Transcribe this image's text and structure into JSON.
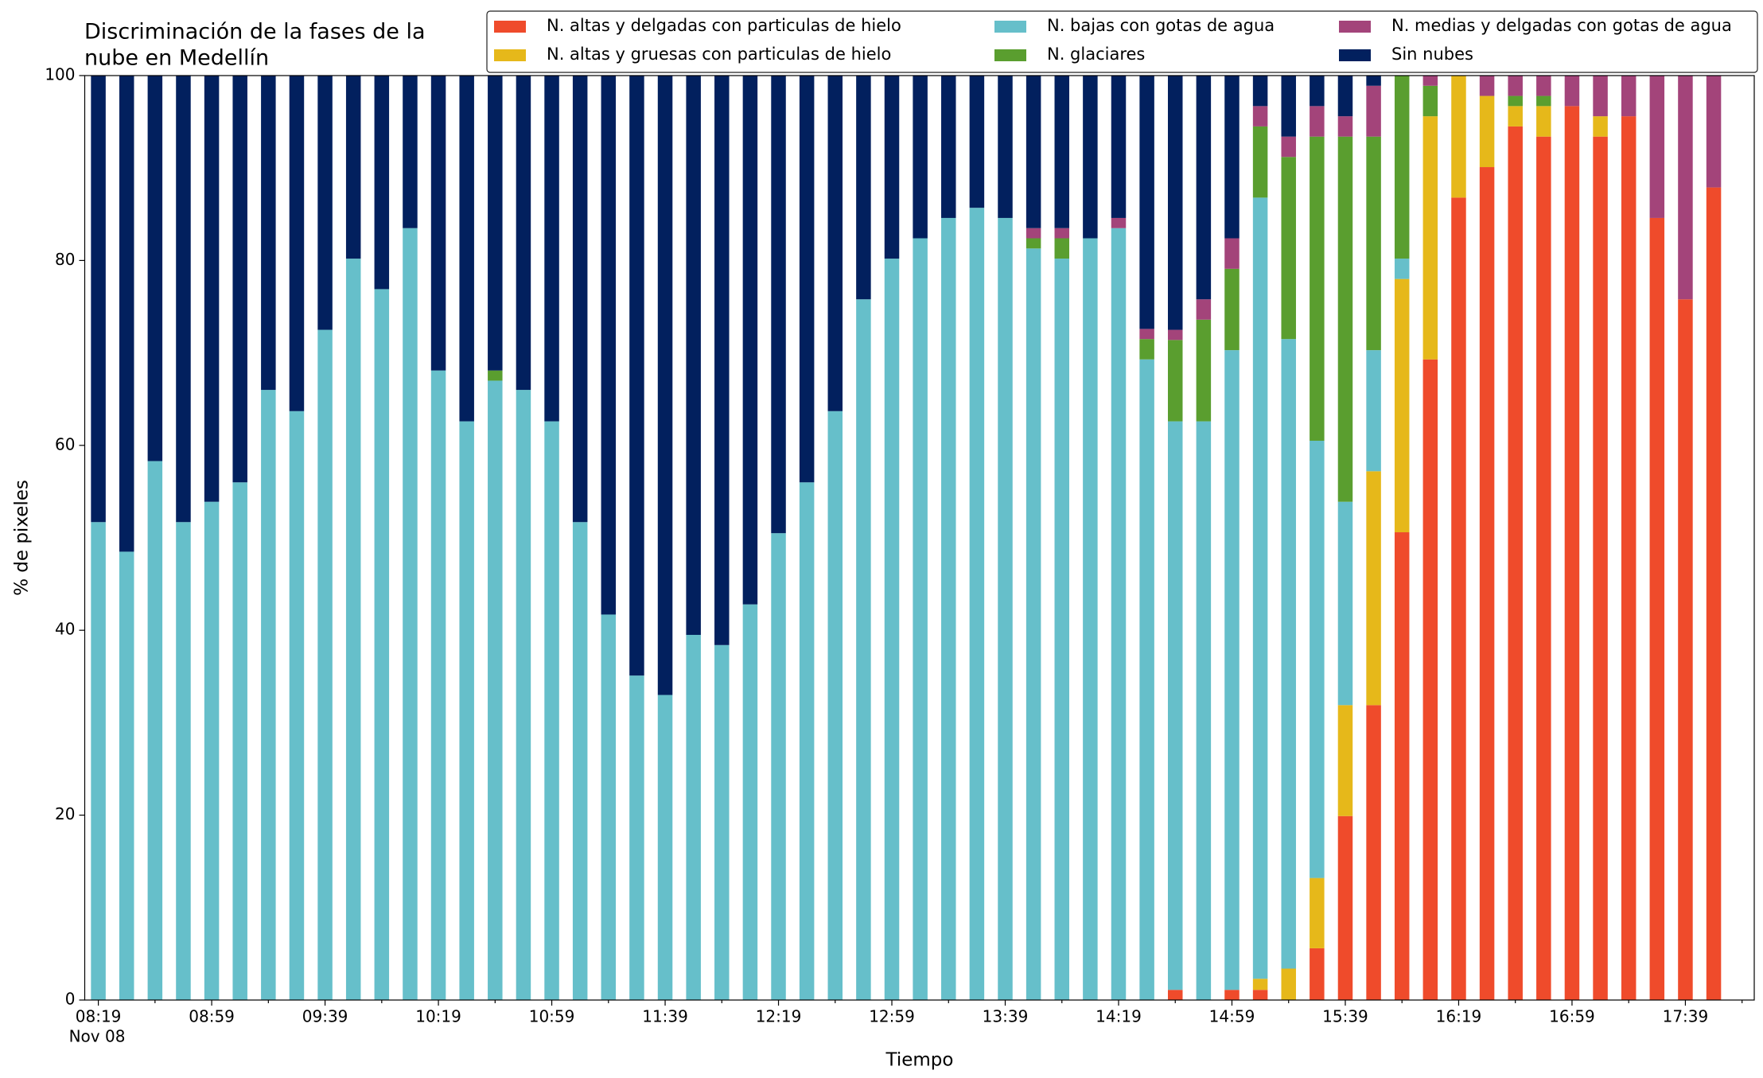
{
  "chart_data": {
    "type": "stacked_bar",
    "title": [
      "Discriminación de la fases de la",
      "nube en Medellín"
    ],
    "x_label": "Tiempo",
    "y_label": "% de pixeles",
    "x_sublabel": "Nov 08",
    "categories": [
      "08:19",
      null,
      null,
      null,
      "08:59",
      null,
      null,
      null,
      "09:39",
      null,
      null,
      null,
      "10:19",
      null,
      null,
      null,
      "10:59",
      null,
      null,
      null,
      "11:39",
      null,
      null,
      null,
      "12:19",
      null,
      null,
      null,
      "12:59",
      null,
      null,
      null,
      "13:39",
      null,
      null,
      null,
      "14:19",
      null,
      null,
      null,
      "14:59",
      null,
      null,
      null,
      "15:39",
      null,
      null,
      null,
      "16:19",
      null,
      null,
      null,
      "16:59",
      null,
      null,
      null,
      "17:39",
      null
    ],
    "ylim": [
      0,
      100
    ],
    "yticks": [
      0,
      20,
      40,
      60,
      80,
      100
    ],
    "series": [
      {
        "name": "N. altas y delgadas con particulas de hielo",
        "color": "#ef4b2b",
        "values": [
          0,
          0,
          0,
          0,
          0,
          0,
          0,
          0,
          0,
          0,
          0,
          0,
          0,
          0,
          0,
          0,
          0,
          0,
          0,
          0,
          0,
          0,
          0,
          0,
          0,
          0,
          0,
          0,
          0,
          0,
          0,
          0,
          0,
          0,
          0,
          0,
          0,
          0,
          1.1,
          0,
          1.1,
          1.1,
          0,
          5.6,
          19.9,
          31.9,
          50.6,
          69.3,
          86.8,
          90.1,
          94.5,
          93.4,
          96.7,
          93.4,
          95.6,
          84.6,
          75.8,
          87.9
        ]
      },
      {
        "name": "N. altas y gruesas con particulas de hielo",
        "color": "#e6b81a",
        "values": [
          0,
          0,
          0,
          0,
          0,
          0,
          0,
          0,
          0,
          0,
          0,
          0,
          0,
          0,
          0,
          0,
          0,
          0,
          0,
          0,
          0,
          0,
          0,
          0,
          0,
          0,
          0,
          0,
          0,
          0,
          0,
          0,
          0,
          0,
          0,
          0,
          0,
          0,
          0,
          0,
          0,
          1.2,
          3.4,
          7.6,
          12.0,
          25.3,
          27.4,
          26.3,
          13.2,
          7.7,
          2.2,
          3.3,
          0,
          2.2,
          0,
          0,
          0,
          0
        ]
      },
      {
        "name": "N. bajas con gotas de agua",
        "color": "#66bfca",
        "values": [
          51.7,
          48.5,
          58.3,
          51.7,
          53.9,
          56.0,
          66.0,
          63.7,
          72.5,
          80.2,
          76.9,
          83.5,
          68.1,
          62.6,
          67.0,
          66.0,
          62.6,
          51.7,
          41.7,
          35.1,
          33.0,
          39.5,
          38.4,
          42.8,
          50.5,
          56.0,
          63.7,
          75.8,
          80.2,
          82.4,
          84.6,
          85.7,
          84.6,
          81.3,
          80.2,
          82.4,
          83.5,
          69.3,
          61.5,
          62.6,
          69.2,
          84.5,
          68.1,
          47.3,
          22.0,
          13.1,
          2.2,
          0,
          0,
          0,
          0,
          0,
          0,
          0,
          0,
          0,
          0,
          0
        ]
      },
      {
        "name": "N. glaciares",
        "color": "#5a9e2f",
        "values": [
          0,
          0,
          0,
          0,
          0,
          0,
          0,
          0,
          0,
          0,
          0,
          0,
          0,
          0,
          1.1,
          0,
          0,
          0,
          0,
          0,
          0,
          0,
          0,
          0,
          0,
          0,
          0,
          0,
          0,
          0,
          0,
          0,
          0,
          1.1,
          2.2,
          0,
          0,
          2.2,
          8.8,
          11.0,
          8.8,
          7.7,
          19.7,
          32.9,
          39.5,
          23.1,
          19.8,
          3.3,
          0,
          0,
          1.1,
          1.1,
          0,
          0,
          0,
          0,
          0,
          0
        ]
      },
      {
        "name": "N. medias y delgadas con gotas de agua",
        "color": "#a3447a",
        "values": [
          0,
          0,
          0,
          0,
          0,
          0,
          0,
          0,
          0,
          0,
          0,
          0,
          0,
          0,
          0,
          0,
          0,
          0,
          0,
          0,
          0,
          0,
          0,
          0,
          0,
          0,
          0,
          0,
          0,
          0,
          0,
          0,
          0,
          1.1,
          1.1,
          0,
          1.1,
          1.1,
          1.1,
          2.2,
          3.3,
          2.2,
          2.2,
          3.3,
          2.2,
          5.5,
          0,
          1.1,
          0,
          2.2,
          2.2,
          2.2,
          3.3,
          4.4,
          4.4,
          15.4,
          24.2,
          12.1
        ]
      },
      {
        "name": "Sin nubes",
        "color": "#02205e",
        "values": [
          48.3,
          51.5,
          41.7,
          48.3,
          46.1,
          44.0,
          34.0,
          36.3,
          27.5,
          19.8,
          23.1,
          16.5,
          31.9,
          37.4,
          31.9,
          34.0,
          37.4,
          48.3,
          58.3,
          64.9,
          67.0,
          60.5,
          61.6,
          57.2,
          49.5,
          44.0,
          36.3,
          24.2,
          19.8,
          17.6,
          15.4,
          14.3,
          15.4,
          16.5,
          16.5,
          17.6,
          15.4,
          27.4,
          27.5,
          24.2,
          17.6,
          3.3,
          6.6,
          3.3,
          4.4,
          1.1,
          0,
          0,
          0,
          0,
          0,
          0,
          0,
          0,
          0,
          0,
          0,
          0
        ]
      }
    ]
  }
}
